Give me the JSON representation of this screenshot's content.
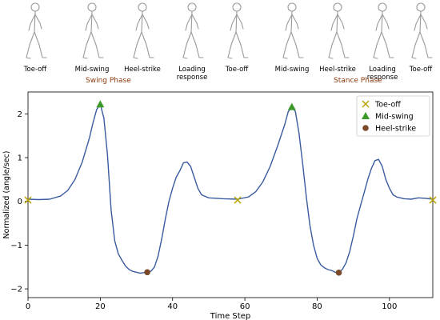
{
  "gait_phases": [
    {
      "label": "Toe-off"
    },
    {
      "label": "Mid-swing"
    },
    {
      "label": "Heel-strike"
    },
    {
      "label": "Loading response"
    },
    {
      "label": "Toe-off"
    },
    {
      "label": "Mid-swing"
    },
    {
      "label": "Heel-strike"
    },
    {
      "label": "Loading response"
    },
    {
      "label": "Toe-off"
    }
  ],
  "phase_groups": {
    "swing": "Swing Phase",
    "stance": "Stance Phase"
  },
  "chart_data": {
    "type": "line",
    "xlabel": "Time Step",
    "ylabel": "Normalized (angle/sec)",
    "xlim": [
      0,
      112
    ],
    "ylim": [
      -2.2,
      2.5
    ],
    "xticks": [
      0,
      20,
      40,
      60,
      80,
      100
    ],
    "yticks": [
      -2,
      -1,
      0,
      1,
      2
    ],
    "grid": false,
    "legend_position": "top-right",
    "series": [
      {
        "color": "#3a5ba0",
        "x": [
          0,
          3,
          6,
          9,
          11,
          13,
          15,
          17,
          18,
          19,
          20,
          21,
          22,
          23,
          24,
          25,
          26,
          27,
          28,
          29,
          30,
          31,
          32,
          33,
          34,
          35,
          36,
          37,
          38,
          39,
          40,
          41,
          42,
          43,
          44,
          45,
          46,
          47,
          48,
          50,
          54,
          58,
          61,
          63,
          65,
          67,
          69,
          71,
          72,
          73,
          74,
          75,
          76,
          77,
          78,
          79,
          80,
          81,
          82,
          83,
          84,
          85,
          86,
          87,
          88,
          89,
          90,
          91,
          92,
          93,
          94,
          95,
          96,
          97,
          98,
          99,
          100,
          101,
          102,
          104,
          106,
          108,
          110,
          112
        ],
        "y": [
          0.05,
          0.04,
          0.05,
          0.12,
          0.25,
          0.5,
          0.9,
          1.45,
          1.8,
          2.1,
          2.22,
          1.9,
          1.05,
          -0.2,
          -0.9,
          -1.2,
          -1.35,
          -1.48,
          -1.56,
          -1.6,
          -1.62,
          -1.64,
          -1.63,
          -1.62,
          -1.6,
          -1.5,
          -1.25,
          -0.85,
          -0.4,
          0.0,
          0.3,
          0.55,
          0.7,
          0.88,
          0.9,
          0.8,
          0.55,
          0.3,
          0.15,
          0.08,
          0.06,
          0.05,
          0.1,
          0.22,
          0.45,
          0.8,
          1.25,
          1.75,
          2.05,
          2.16,
          2.05,
          1.55,
          0.85,
          0.1,
          -0.55,
          -1.0,
          -1.3,
          -1.45,
          -1.52,
          -1.56,
          -1.58,
          -1.62,
          -1.63,
          -1.55,
          -1.4,
          -1.15,
          -0.8,
          -0.4,
          -0.1,
          0.2,
          0.5,
          0.75,
          0.93,
          0.96,
          0.8,
          0.5,
          0.3,
          0.15,
          0.1,
          0.06,
          0.05,
          0.08,
          0.07,
          0.05
        ]
      }
    ],
    "markers": [
      {
        "name": "Toe-off",
        "shape": "x",
        "color": "#b8a400",
        "points": [
          [
            0,
            0.03
          ],
          [
            58,
            0.03
          ],
          [
            112,
            0.03
          ]
        ]
      },
      {
        "name": "Mid-swing",
        "shape": "triangle",
        "color": "#3d9a2a",
        "points": [
          [
            20,
            2.22
          ],
          [
            73,
            2.16
          ]
        ]
      },
      {
        "name": "Heel-strike",
        "shape": "circle",
        "color": "#7b4a28",
        "points": [
          [
            33,
            -1.62
          ],
          [
            86,
            -1.63
          ]
        ]
      }
    ]
  }
}
